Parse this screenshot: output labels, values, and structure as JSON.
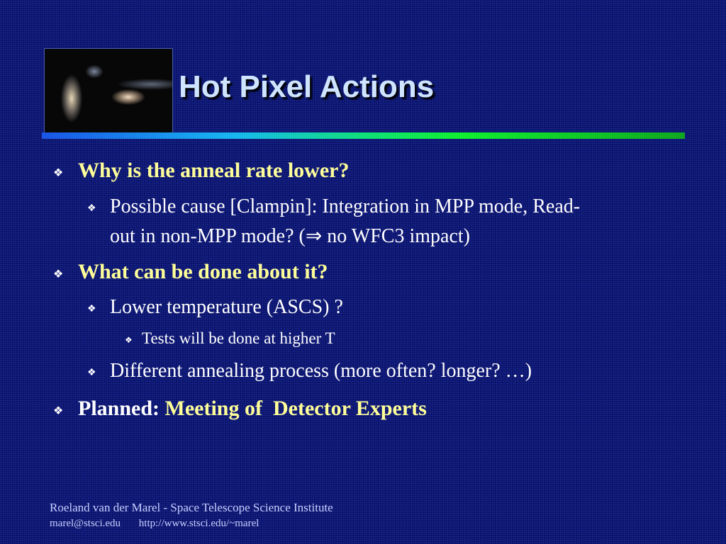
{
  "slide": {
    "title": "Hot Pixel Actions",
    "bullet_icon": "diamond-four-bullet-icon",
    "items": [
      {
        "level": 1,
        "text": "Why is the anneal rate lower?"
      },
      {
        "level": 2,
        "line1": "Possible cause [Clampin]: Integration in MPP mode, Read-",
        "line2": "out in non-MPP mode? (⇒ no WFC3 impact)"
      },
      {
        "level": 1,
        "text": "What can be done about it?"
      },
      {
        "level": 2,
        "text": "Lower temperature (ASCS) ?"
      },
      {
        "level": 3,
        "text": "Tests will be done at higher T"
      },
      {
        "level": 2,
        "text": "Different annealing process (more often? longer? …)"
      },
      {
        "level": 1,
        "prefix": "Planned: ",
        "text": "Meeting of  Detector Experts"
      }
    ],
    "footer": {
      "line1": "Roeland van der Marel - Space Telescope Science Institute",
      "email": "marel@stsci.edu",
      "url": "http://www.stsci.edu/~marel"
    },
    "colors": {
      "background": "#0a1470",
      "title": "#cfe4ff",
      "heading": "#ffff99",
      "body": "#ffffff"
    }
  }
}
